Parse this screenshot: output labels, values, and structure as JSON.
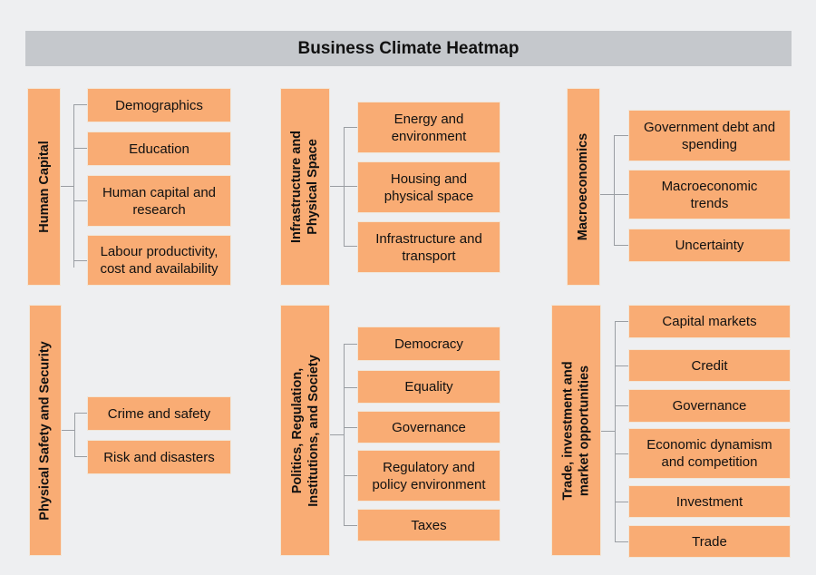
{
  "title": "Business Climate Heatmap",
  "groups": [
    {
      "label": "Human Capital",
      "items": [
        "Demographics",
        "Education",
        "Human capital and\nresearch",
        "Labour productivity,\ncost and availability"
      ]
    },
    {
      "label": "Infrastructure and\nPhysical Space",
      "items": [
        "Energy and\nenvironment",
        "Housing and\nphysical space",
        "Infrastructure and\ntransport"
      ]
    },
    {
      "label": "Macroeconomics",
      "items": [
        "Government debt and\nspending",
        "Macroeconomic\ntrends",
        "Uncertainty"
      ]
    },
    {
      "label": "Physical Safety and Security",
      "items": [
        "Crime and safety",
        "Risk and disasters"
      ]
    },
    {
      "label": "Politics, Regulation,\nInstitutions, and Society",
      "items": [
        "Democracy",
        "Equality",
        "Governance",
        "Regulatory and\npolicy environment",
        "Taxes"
      ]
    },
    {
      "label": "Trade, investment and\nmarket opportunities",
      "items": [
        "Capital markets",
        "Credit",
        "Governance",
        "Economic dynamism\nand competition",
        "Investment",
        "Trade"
      ]
    }
  ],
  "colors": {
    "box": "#f9ac74",
    "title_bar": "#c5c8cc",
    "background": "#eeeff1",
    "connector": "#9a9ea3"
  }
}
